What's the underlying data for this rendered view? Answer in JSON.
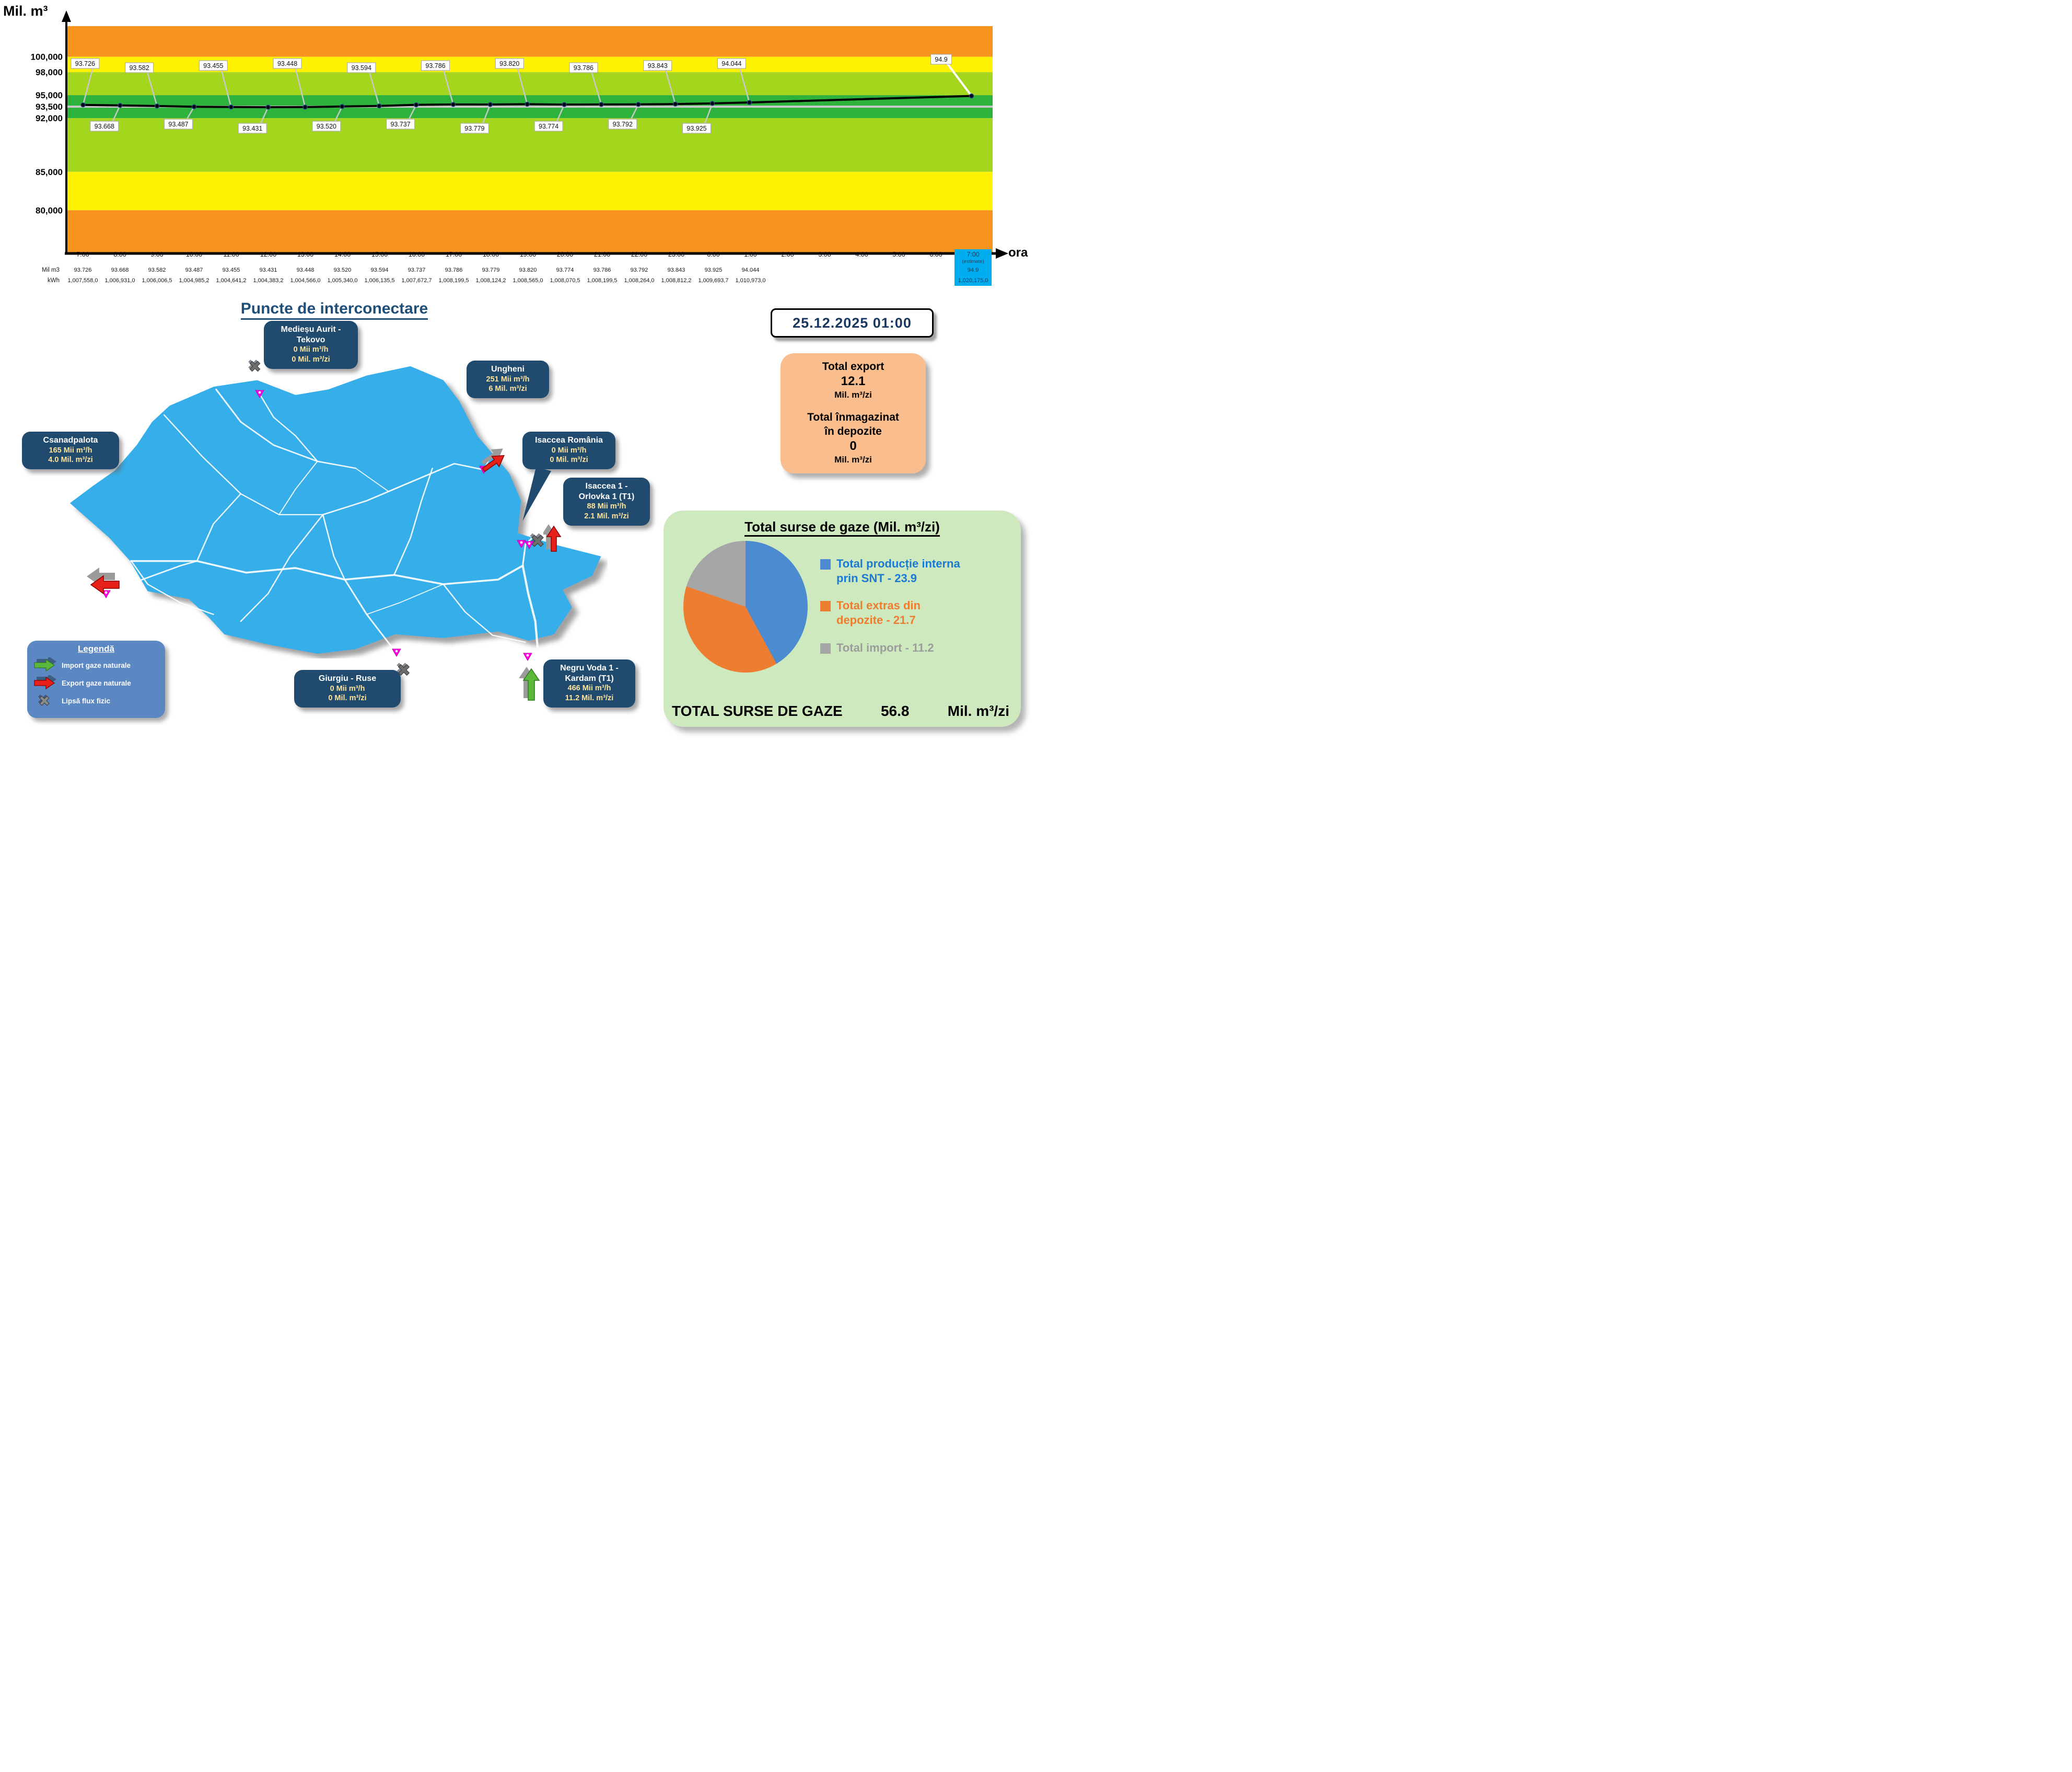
{
  "chart_data": [
    {
      "type": "line",
      "title": "",
      "ylabel": "Mil. m³",
      "xlabel": "ora",
      "x": [
        "7:00",
        "8:00",
        "9:00",
        "10:00",
        "11:00",
        "12:00",
        "13:00",
        "14:00",
        "15:00",
        "16:00",
        "17:00",
        "18:00",
        "19:00",
        "20:00",
        "21:00",
        "22:00",
        "23:00",
        "0:00",
        "1:00"
      ],
      "values": [
        93.726,
        93.668,
        93.582,
        93.487,
        93.455,
        93.431,
        93.448,
        93.52,
        93.594,
        93.737,
        93.786,
        93.779,
        93.82,
        93.774,
        93.786,
        93.792,
        93.843,
        93.925,
        94.044
      ],
      "estimate_point": {
        "x": "7:00 (estimate)",
        "value": 94.9
      },
      "x_slots": [
        "7:00",
        "8:00",
        "9:00",
        "10:00",
        "11:00",
        "12:00",
        "13:00",
        "14:00",
        "15:00",
        "16:00",
        "17:00",
        "18:00",
        "19:00",
        "20:00",
        "21:00",
        "22:00",
        "23:00",
        "0:00",
        "1:00",
        "2:00",
        "3:00",
        "4:00",
        "5:00",
        "6:00",
        "7:00 (estimate)"
      ],
      "point_labels": [
        "93.726",
        "93.668",
        "93.582",
        "93.487",
        "93.455",
        "93.431",
        "93.448",
        "93.520",
        "93.594",
        "93.737",
        "93.786",
        "93.779",
        "93.820",
        "93.774",
        "93.786",
        "93.792",
        "93.843",
        "93.925",
        "94.044",
        "94.9"
      ],
      "label_positions": [
        "above",
        "below",
        "above",
        "below",
        "above",
        "below",
        "above",
        "below",
        "above",
        "below",
        "above",
        "below",
        "above",
        "below",
        "above",
        "below",
        "above",
        "below",
        "above",
        "above"
      ],
      "yticks": [
        100000,
        98000,
        95000,
        93500,
        92000,
        85000,
        80000
      ],
      "ylim": [
        74500,
        104000
      ],
      "reference_line": 93500,
      "grid": false,
      "bands": [
        {
          "from": 100000,
          "to": 104000,
          "color": "#F7941E"
        },
        {
          "from": 98000,
          "to": 100000,
          "color": "#FFF200"
        },
        {
          "from": 95000,
          "to": 98000,
          "color": "#A4D61E"
        },
        {
          "from": 92000,
          "to": 95000,
          "color": "#2DB23B"
        },
        {
          "from": 85000,
          "to": 92000,
          "color": "#A4D61E"
        },
        {
          "from": 80000,
          "to": 85000,
          "color": "#FFF200"
        },
        {
          "from": 74500,
          "to": 80000,
          "color": "#F7941E"
        }
      ]
    },
    {
      "type": "pie",
      "title": "Total surse de gaze  (Mil. m³/zi)",
      "legend_position": "right",
      "slices": [
        {
          "label": "Total producție interna prin SNT",
          "value": 23.9,
          "color": "#4C8BD0",
          "text_color": "#1B7AD3"
        },
        {
          "label": "Total extras din depozite",
          "value": 21.7,
          "color": "#ED7D31",
          "text_color": "#ED7D31"
        },
        {
          "label": "Total import",
          "value": 11.2,
          "color": "#A6A6A6",
          "text_color": "#9C9C9C"
        }
      ],
      "total": {
        "label": "TOTAL SURSE DE GAZE",
        "value": "56.8",
        "unit": "Mil. m³/zi"
      }
    }
  ],
  "table": {
    "row_labels": [
      "Mil m3",
      "kWh"
    ],
    "estimate_bg": "#00AEEF",
    "columns": [
      {
        "time": "7:00",
        "milm3": "93.726",
        "kwh": "1,007,558,0"
      },
      {
        "time": "8:00",
        "milm3": "93.668",
        "kwh": "1,006,931,0"
      },
      {
        "time": "9:00",
        "milm3": "93.582",
        "kwh": "1,006,006,5"
      },
      {
        "time": "10:00",
        "milm3": "93.487",
        "kwh": "1,004,985,2"
      },
      {
        "time": "11:00",
        "milm3": "93.455",
        "kwh": "1,004,641,2"
      },
      {
        "time": "12:00",
        "milm3": "93.431",
        "kwh": "1,004,383,2"
      },
      {
        "time": "13:00",
        "milm3": "93.448",
        "kwh": "1,004,566,0"
      },
      {
        "time": "14:00",
        "milm3": "93.520",
        "kwh": "1,005,340,0"
      },
      {
        "time": "15:00",
        "milm3": "93.594",
        "kwh": "1,006,135,5"
      },
      {
        "time": "16:00",
        "milm3": "93.737",
        "kwh": "1,007,672,7"
      },
      {
        "time": "17:00",
        "milm3": "93.786",
        "kwh": "1,008,199,5"
      },
      {
        "time": "18:00",
        "milm3": "93.779",
        "kwh": "1,008,124,2"
      },
      {
        "time": "19:00",
        "milm3": "93.820",
        "kwh": "1,008,565,0"
      },
      {
        "time": "20:00",
        "milm3": "93.774",
        "kwh": "1,008,070,5"
      },
      {
        "time": "21:00",
        "milm3": "93.786",
        "kwh": "1,008,199,5"
      },
      {
        "time": "22:00",
        "milm3": "93.792",
        "kwh": "1,008,264,0"
      },
      {
        "time": "23:00",
        "milm3": "93.843",
        "kwh": "1,008,812,2"
      },
      {
        "time": "0:00",
        "milm3": "93.925",
        "kwh": "1,009,693,7"
      },
      {
        "time": "1:00",
        "milm3": "94.044",
        "kwh": "1,010,973,0"
      },
      {
        "time": "2:00",
        "milm3": "",
        "kwh": ""
      },
      {
        "time": "3:00",
        "milm3": "",
        "kwh": ""
      },
      {
        "time": "4:00",
        "milm3": "",
        "kwh": ""
      },
      {
        "time": "5:00",
        "milm3": "",
        "kwh": ""
      },
      {
        "time": "6:00",
        "milm3": "",
        "kwh": ""
      },
      {
        "time": "7:00",
        "sub": "(estimate)",
        "milm3": "94.9",
        "kwh": "1,020,175,0",
        "estimate": true
      }
    ]
  },
  "map": {
    "title": "Puncte de interconectare",
    "points": [
      {
        "title1": "Medieșu Aurit -",
        "title2": "Tekovo",
        "flow_hour": "0 Mii  m³/h",
        "flow_day": "0 Mil.  m³/zi"
      },
      {
        "title1": "Ungheni",
        "flow_hour": "251 Mii  m³/h",
        "flow_day": "6 Mil.  m³/zi"
      },
      {
        "title1": "Csanadpalota",
        "flow_hour": "165 Mii  m³/h",
        "flow_day": "4.0 Mil.  m³/zi"
      },
      {
        "title1": "Isaccea România",
        "flow_hour": "0 Mii  m³/h",
        "flow_day": "0 Mil.  m³/zi"
      },
      {
        "title1": "Isaccea 1 -",
        "title2": "Orlovka 1 (T1)",
        "flow_hour": "88 Mii  m³/h",
        "flow_day": "2.1 Mil.  m³/zi"
      },
      {
        "title1": "Giurgiu - Ruse",
        "flow_hour": "0 Mii  m³/h",
        "flow_day": "0 Mil.  m³/zi"
      },
      {
        "title1": "Negru Voda 1 -",
        "title2": "Kardam (T1)",
        "flow_hour": "466 Mii  m³/h",
        "flow_day": "11.2 Mil.  m³/zi"
      }
    ],
    "legend": {
      "title": "Legendă",
      "items": [
        {
          "icon": "import-arrow-icon",
          "label": "Import gaze naturale"
        },
        {
          "icon": "export-arrow-icon",
          "label": "Export gaze naturale"
        },
        {
          "icon": "no-flow-x-icon",
          "label": "Lipsă flux fizic"
        }
      ]
    }
  },
  "info": {
    "datetime": "25.12.2025 01:00",
    "export": {
      "label": "Total export",
      "value": "12.1",
      "unit": "Mil. m³/zi"
    },
    "storage": {
      "label_line1": "Total înmagazinat",
      "label_line2": "în depozite",
      "value": "0",
      "unit": "Mil. m³/zi"
    }
  },
  "sources": {
    "title": "Total surse de gaze  (Mil. m³/zi)",
    "legend_lines": [
      [
        "Total producție interna",
        "prin SNT - 23.9"
      ],
      [
        "Total extras din",
        "depozite - 21.7"
      ],
      [
        "Total import - 11.2",
        ""
      ]
    ],
    "total_label": "TOTAL SURSE DE GAZE",
    "total_value": "56.8",
    "total_unit": "Mil. m³/zi"
  }
}
